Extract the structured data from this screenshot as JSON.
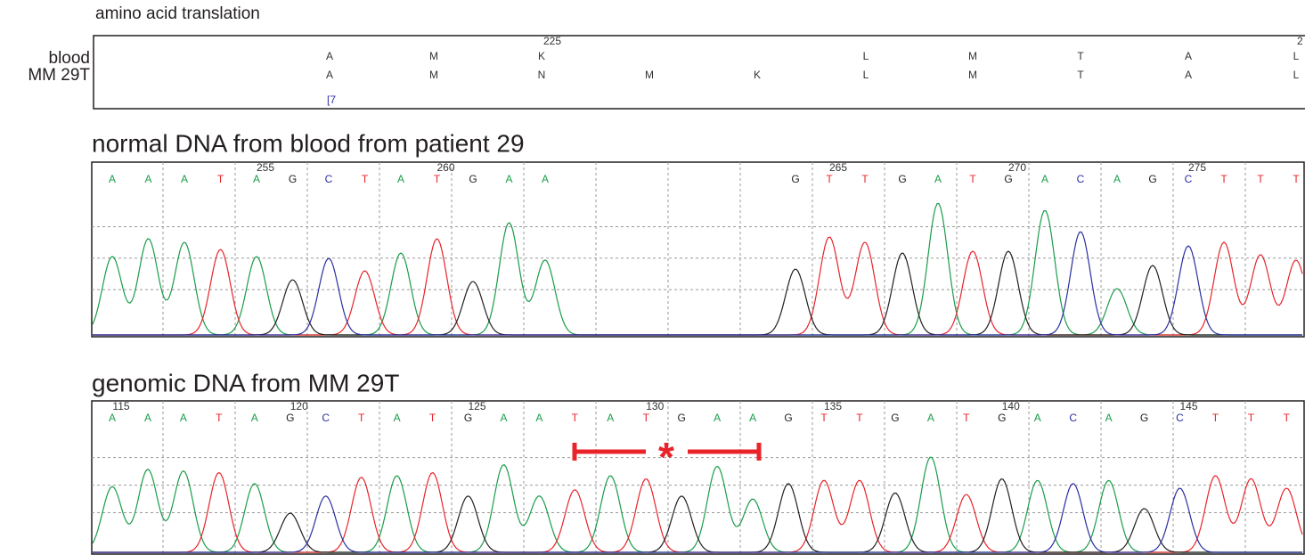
{
  "translation": {
    "title": "amino acid translation",
    "rows": [
      {
        "label": "blood",
        "residues": [
          "A",
          "M",
          "K",
          "L",
          "M",
          "T",
          "A",
          "L"
        ]
      },
      {
        "label": "MM 29T",
        "residues": [
          "A",
          "M",
          "N",
          "M",
          "K",
          "L",
          "M",
          "T",
          "A",
          "L"
        ]
      }
    ],
    "positions": [
      "225",
      "2"
    ],
    "note": "[7"
  },
  "panels": [
    {
      "title": "normal DNA from blood from patient 29",
      "ticks": [
        "255",
        "260",
        "265",
        "270",
        "275"
      ],
      "bases": [
        "A",
        "A",
        "A",
        "T",
        "A",
        "G",
        "C",
        "T",
        "A",
        "T",
        "G",
        "A",
        "A",
        "G",
        "T",
        "T",
        "G",
        "A",
        "T",
        "G",
        "A",
        "C",
        "A",
        "G",
        "C",
        "T",
        "T",
        "T"
      ]
    },
    {
      "title": "genomic DNA from MM 29T",
      "ticks": [
        "115",
        "120",
        "125",
        "130",
        "135",
        "140",
        "145"
      ],
      "bases": [
        "A",
        "A",
        "A",
        "T",
        "A",
        "G",
        "C",
        "T",
        "A",
        "T",
        "G",
        "A",
        "A",
        "T",
        "A",
        "T",
        "G",
        "A",
        "A",
        "G",
        "T",
        "T",
        "G",
        "A",
        "T",
        "G",
        "A",
        "C",
        "A",
        "G",
        "C",
        "T",
        "T",
        "T"
      ],
      "marker": "*"
    }
  ]
}
